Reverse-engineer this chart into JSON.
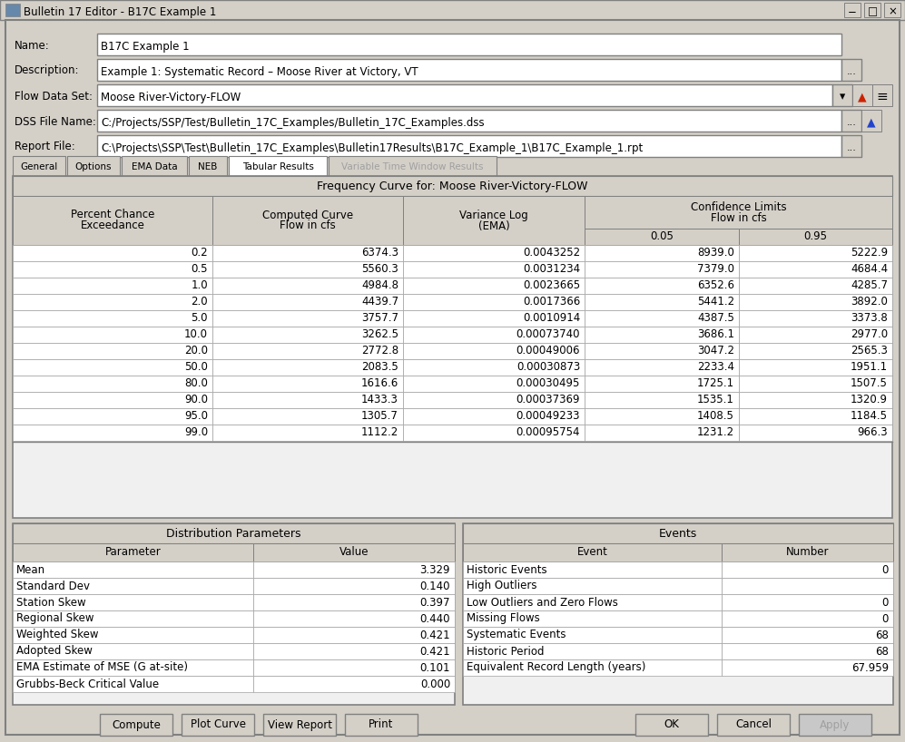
{
  "title_bar": "Bulletin 17 Editor - B17C Example 1",
  "name_value": "B17C Example 1",
  "description_value": "Example 1: Systematic Record – Moose River at Victory, VT",
  "flow_data_set": "Moose River-Victory-FLOW",
  "dss_file": "C:/Projects/SSP/Test/Bulletin_17C_Examples/Bulletin_17C_Examples.dss",
  "report_file": "C:\\Projects\\SSP\\Test\\Bulletin_17C_Examples\\Bulletin17Results\\B17C_Example_1\\B17C_Example_1.rpt",
  "tabs": [
    "General",
    "Options",
    "EMA Data",
    "NEB",
    "Tabular Results",
    "Variable Time Window Results"
  ],
  "active_tab": "Tabular Results",
  "freq_table_title": "Frequency Curve for: Moose River-Victory-FLOW",
  "freq_data": [
    [
      "0.2",
      "6374.3",
      "0.0043252",
      "8939.0",
      "5222.9"
    ],
    [
      "0.5",
      "5560.3",
      "0.0031234",
      "7379.0",
      "4684.4"
    ],
    [
      "1.0",
      "4984.8",
      "0.0023665",
      "6352.6",
      "4285.7"
    ],
    [
      "2.0",
      "4439.7",
      "0.0017366",
      "5441.2",
      "3892.0"
    ],
    [
      "5.0",
      "3757.7",
      "0.0010914",
      "4387.5",
      "3373.8"
    ],
    [
      "10.0",
      "3262.5",
      "0.00073740",
      "3686.1",
      "2977.0"
    ],
    [
      "20.0",
      "2772.8",
      "0.00049006",
      "3047.2",
      "2565.3"
    ],
    [
      "50.0",
      "2083.5",
      "0.00030873",
      "2233.4",
      "1951.1"
    ],
    [
      "80.0",
      "1616.6",
      "0.00030495",
      "1725.1",
      "1507.5"
    ],
    [
      "90.0",
      "1433.3",
      "0.00037369",
      "1535.1",
      "1320.9"
    ],
    [
      "95.0",
      "1305.7",
      "0.00049233",
      "1408.5",
      "1184.5"
    ],
    [
      "99.0",
      "1112.2",
      "0.00095754",
      "1231.2",
      "966.3"
    ]
  ],
  "dist_params": [
    [
      "Mean",
      "3.329"
    ],
    [
      "Standard Dev",
      "0.140"
    ],
    [
      "Station Skew",
      "0.397"
    ],
    [
      "Regional Skew",
      "0.440"
    ],
    [
      "Weighted Skew",
      "0.421"
    ],
    [
      "Adopted Skew",
      "0.421"
    ],
    [
      "EMA Estimate of MSE (G at-site)",
      "0.101"
    ],
    [
      "Grubbs-Beck Critical Value",
      "0.000"
    ]
  ],
  "events_data": [
    [
      "Historic Events",
      "0"
    ],
    [
      "High Outliers",
      ""
    ],
    [
      "Low Outliers and Zero Flows",
      "0"
    ],
    [
      "Missing Flows",
      "0"
    ],
    [
      "Systematic Events",
      "68"
    ],
    [
      "Historic Period",
      "68"
    ],
    [
      "Equivalent Record Length (years)",
      "67.959"
    ]
  ],
  "buttons_left": [
    "Compute",
    "Plot Curve",
    "View Report",
    "Print"
  ],
  "buttons_right": [
    "OK",
    "Cancel",
    "Apply"
  ],
  "bg": "#d4d0c8",
  "white": "#ffffff",
  "cell_bg": "#ffffff",
  "hdr_bg": "#d4d0c8",
  "panel_bg": "#f0f0f0",
  "border": "#808080",
  "cell_bdr": "#a0a0a0",
  "black": "#000000",
  "disabled": "#a0a0a0"
}
